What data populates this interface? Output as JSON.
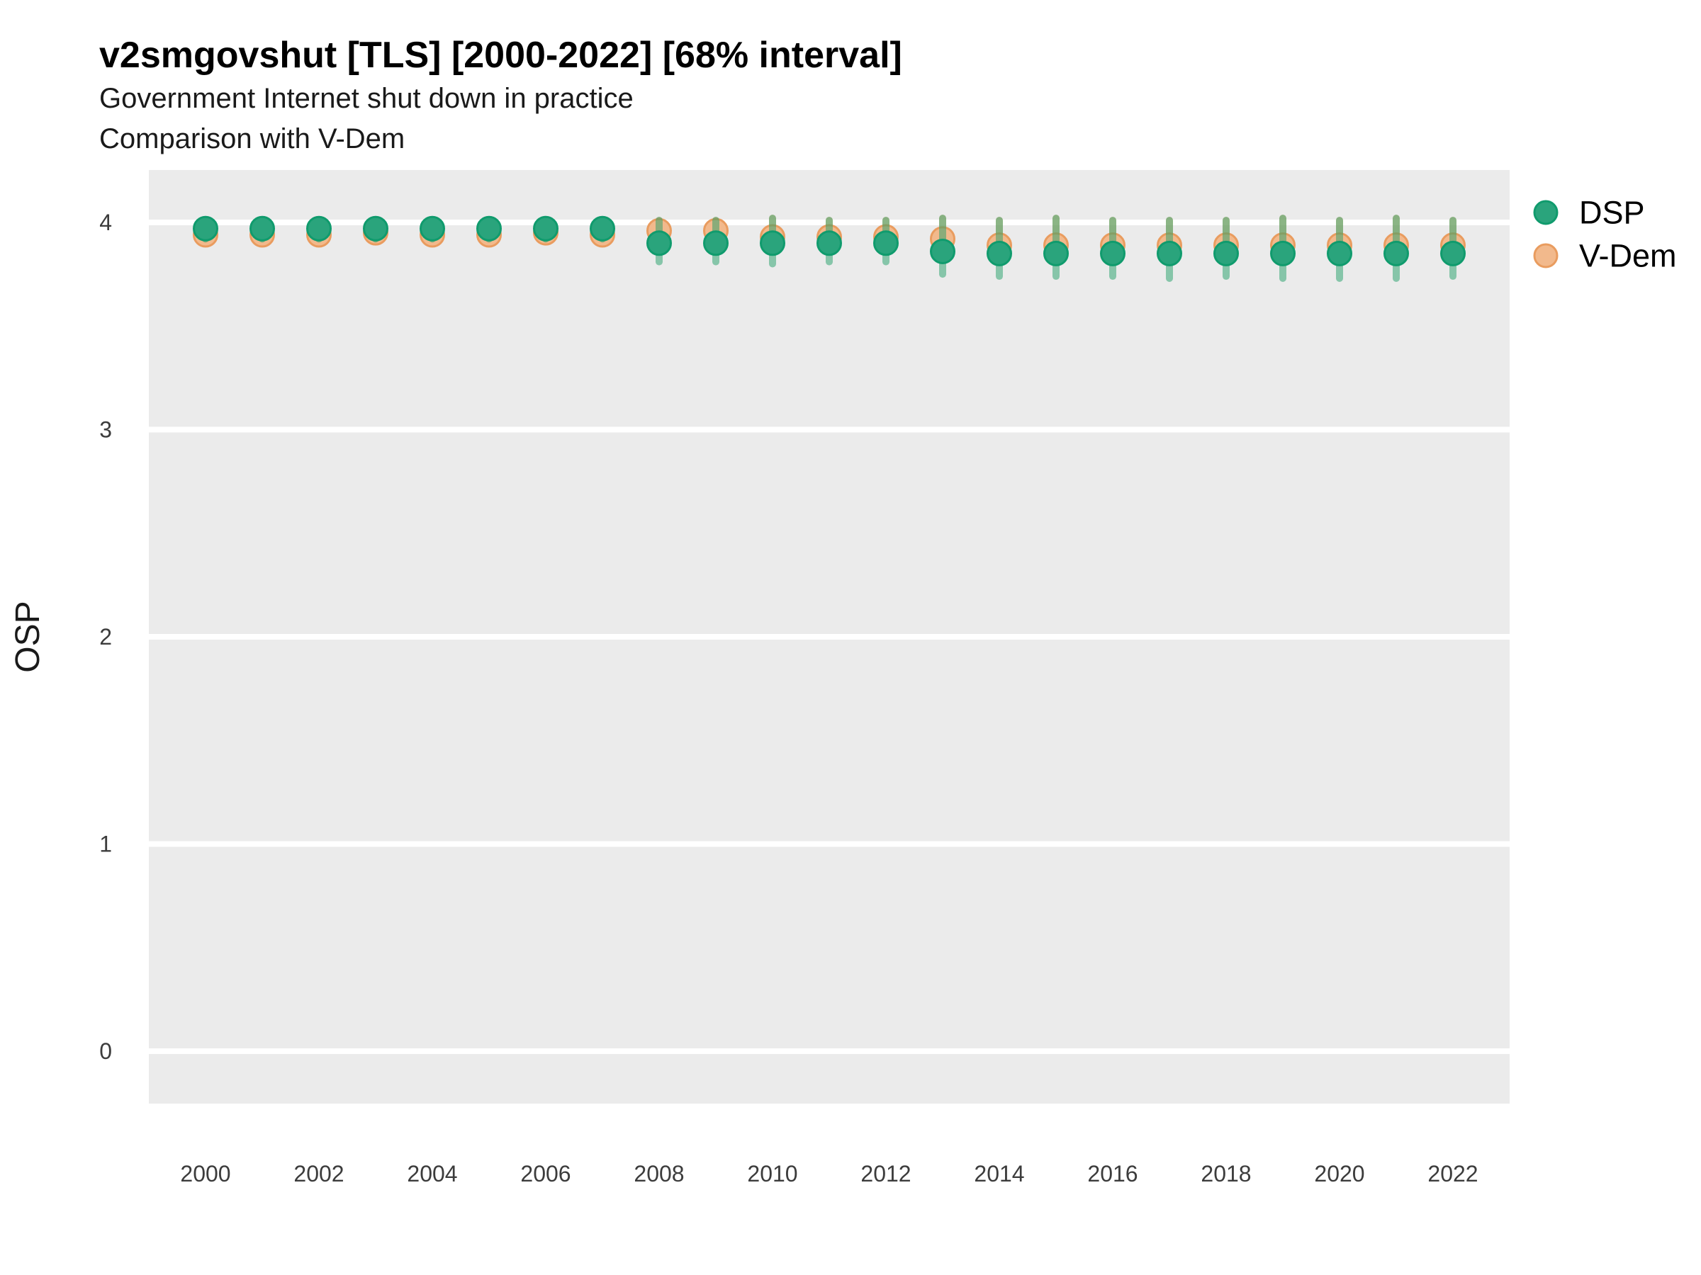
{
  "header": {
    "title": "v2smgovshut [TLS] [2000-2022] [68% interval]",
    "subtitle1": "Government Internet shut down in practice",
    "subtitle2": "Comparison with V-Dem"
  },
  "legend": {
    "position": "right",
    "items": [
      {
        "label": "DSP",
        "fill": "#2AA47C",
        "stroke": "#109B6D"
      },
      {
        "label": "V-Dem",
        "fill": "#F2B98C",
        "stroke": "#E99C5F"
      }
    ]
  },
  "colors": {
    "panel": "#EBEBEB",
    "grid": "#FFFFFF",
    "dsp_fill": "#2AA47C",
    "dsp_stroke": "#109B6D",
    "vdem_fill": "#F2B98C",
    "vdem_stroke": "#E99C5F",
    "dsp_interval_bar": "rgba(33,160,104,0.5)",
    "vdem_interval_bar": "rgba(233,150,72,0.5)"
  },
  "chart_data": {
    "type": "scatter",
    "title": "v2smgovshut [TLS] [2000-2022] [68% interval]",
    "subtitle": "Government Internet shut down in practice — Comparison with V-Dem",
    "xlabel": "",
    "ylabel": "OSP",
    "x": [
      2000,
      2001,
      2002,
      2003,
      2004,
      2005,
      2006,
      2007,
      2008,
      2009,
      2010,
      2011,
      2012,
      2013,
      2014,
      2015,
      2016,
      2017,
      2018,
      2019,
      2020,
      2021,
      2022
    ],
    "xticks": [
      2000,
      2002,
      2004,
      2006,
      2008,
      2010,
      2012,
      2014,
      2016,
      2018,
      2020,
      2022
    ],
    "yticks": [
      0,
      1,
      2,
      3,
      4
    ],
    "ylim": [
      -0.25,
      4.25
    ],
    "xlim": [
      1999,
      2023
    ],
    "grid": "horizontal-major-only",
    "legend_position": "right",
    "series": [
      {
        "name": "DSP",
        "values": [
          3.97,
          3.97,
          3.97,
          3.97,
          3.97,
          3.97,
          3.97,
          3.97,
          3.9,
          3.9,
          3.9,
          3.9,
          3.9,
          3.86,
          3.85,
          3.85,
          3.85,
          3.85,
          3.85,
          3.85,
          3.85,
          3.85,
          3.85
        ],
        "interval_68_lo": [
          3.92,
          3.92,
          3.92,
          3.92,
          3.92,
          3.92,
          3.92,
          3.92,
          3.81,
          3.81,
          3.8,
          3.81,
          3.81,
          3.75,
          3.74,
          3.74,
          3.74,
          3.73,
          3.74,
          3.73,
          3.73,
          3.73,
          3.74
        ],
        "interval_68_hi": [
          4.0,
          4.0,
          4.0,
          4.0,
          4.0,
          4.0,
          4.0,
          4.0,
          4.01,
          4.01,
          4.02,
          4.01,
          4.01,
          4.02,
          4.01,
          4.02,
          4.01,
          4.01,
          4.01,
          4.02,
          4.01,
          4.02,
          4.01
        ]
      },
      {
        "name": "V-Dem",
        "values": [
          3.94,
          3.94,
          3.94,
          3.95,
          3.94,
          3.94,
          3.95,
          3.94,
          3.96,
          3.96,
          3.93,
          3.93,
          3.93,
          3.92,
          3.89,
          3.89,
          3.89,
          3.89,
          3.89,
          3.89,
          3.89,
          3.89,
          3.89
        ]
      }
    ]
  }
}
